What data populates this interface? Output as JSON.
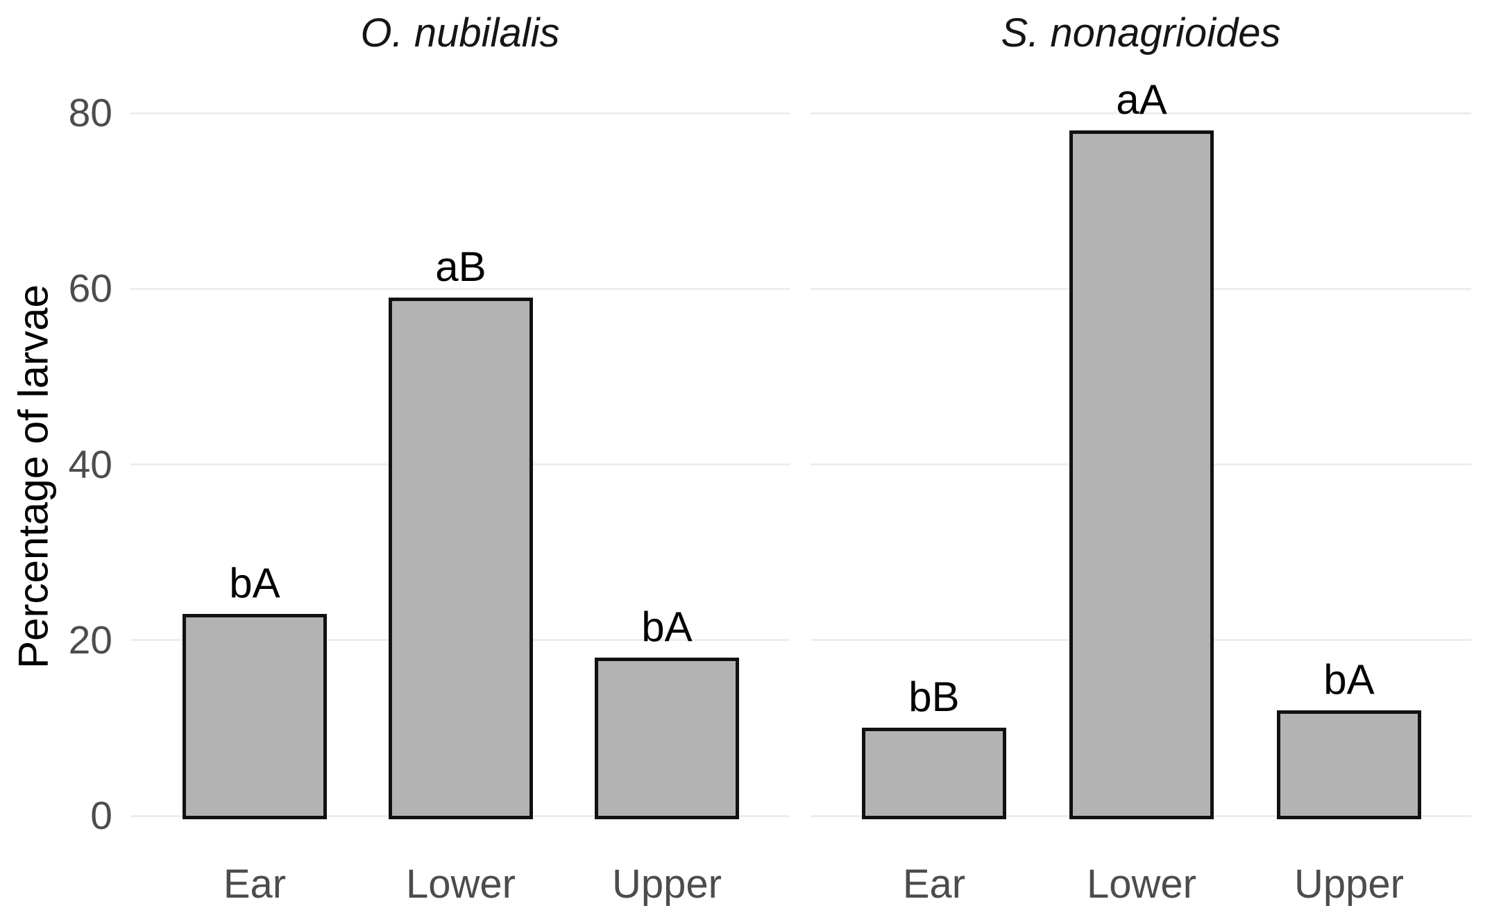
{
  "chart_data": {
    "type": "bar",
    "title": "",
    "ylabel": "Percentage of larvae",
    "xlabel": "",
    "ylim": [
      0,
      80
    ],
    "yticks": [
      0,
      20,
      40,
      60,
      80
    ],
    "grid": "horizontal major gridlines only, very light gray",
    "legend": "none",
    "categories": [
      "Ear",
      "Lower",
      "Upper"
    ],
    "panels": [
      {
        "title": "O. nubilalis",
        "title_style": "italic",
        "series_name": "Percentage of larvae",
        "values": [
          23,
          59,
          18
        ],
        "sig_letters": [
          "bA",
          "aB",
          "bA"
        ]
      },
      {
        "title": "S. nonagrioides",
        "title_style": "italic",
        "series_name": "Percentage of larvae",
        "values": [
          10,
          78,
          12
        ],
        "sig_letters": [
          "bB",
          "aA",
          "bA"
        ]
      }
    ]
  },
  "colors": {
    "background": "#ffffff",
    "bar_fill": "#b3b3b3",
    "bar_outline": "#111111",
    "gridline": "#ededed",
    "tick_text": "#4c4c4c",
    "title_text": "#151515",
    "axis_title_text": "#000000"
  }
}
